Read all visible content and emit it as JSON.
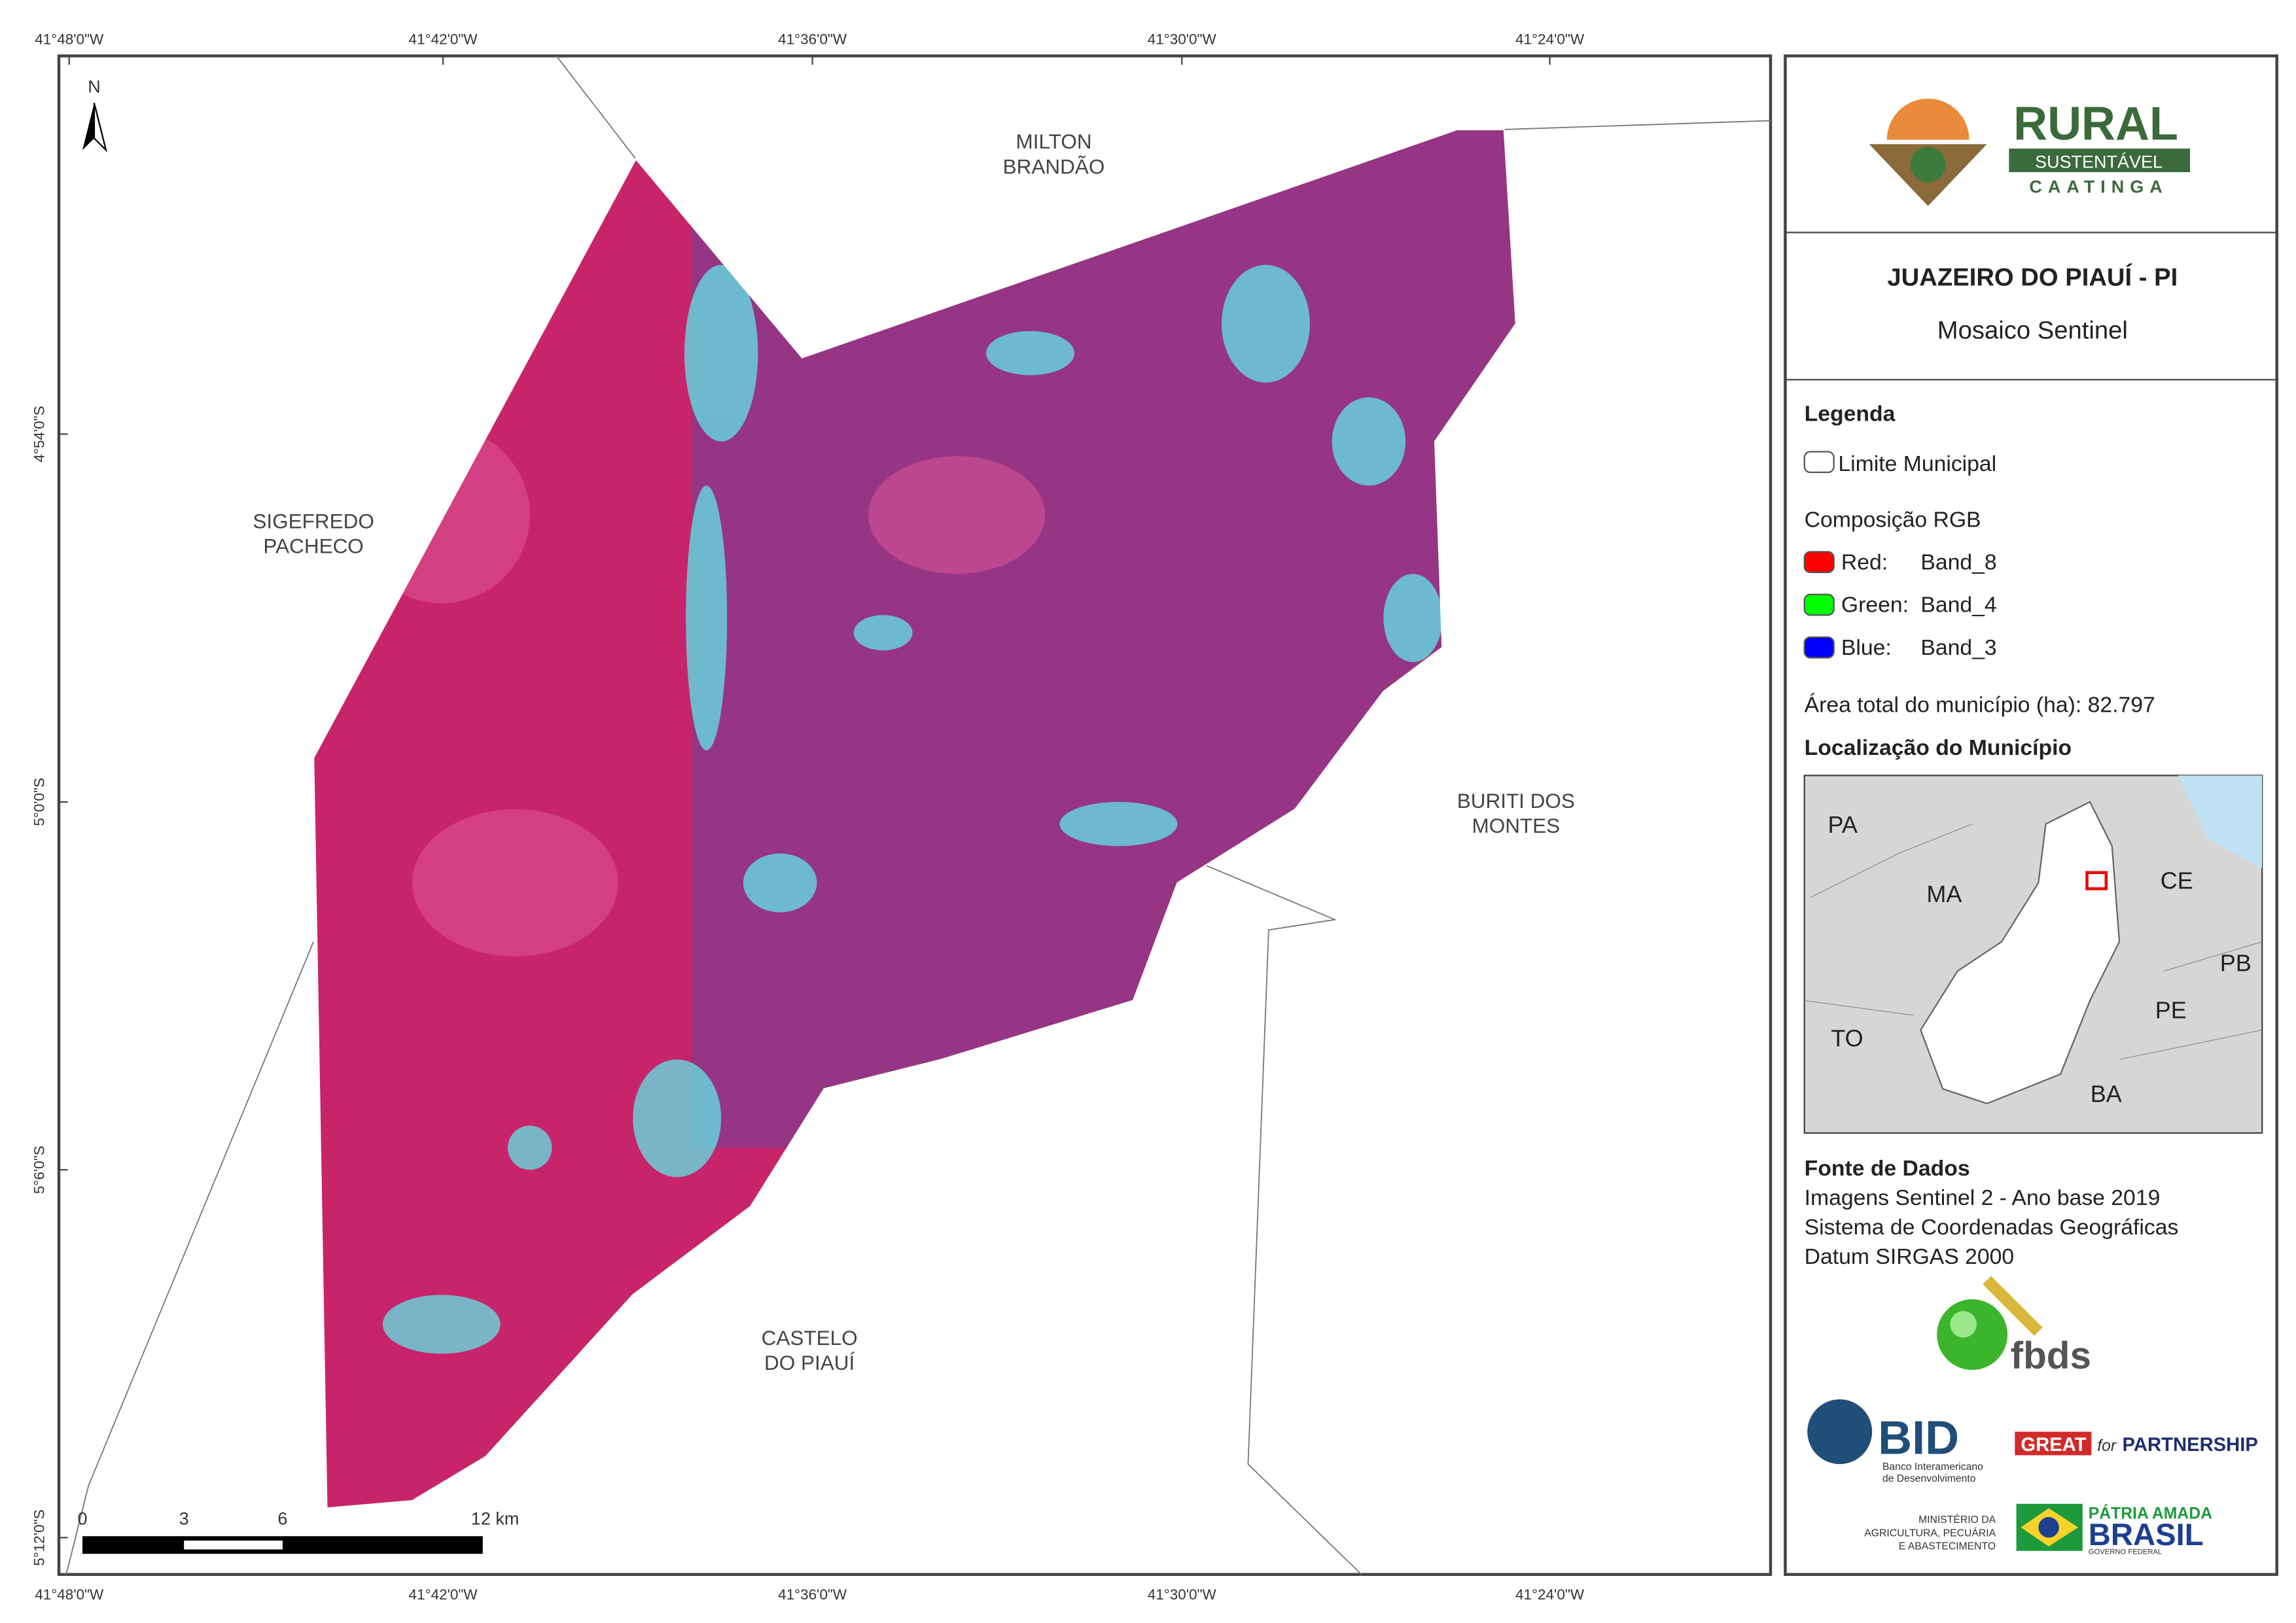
{
  "map": {
    "lon_labels": [
      "41°48'0\"W",
      "41°42'0\"W",
      "41°36'0\"W",
      "41°30'0\"W",
      "41°24'0\"W"
    ],
    "lat_labels": [
      "4°54'0\"S",
      "5°0'0\"S",
      "5°6'0\"S",
      "5°12'0\"S"
    ],
    "north": "N",
    "places": [
      [
        "MILTON",
        "BRANDÃO"
      ],
      [
        "SIGEFREDO",
        "PACHECO"
      ],
      [
        "BURITI DOS",
        "MONTES"
      ],
      [
        "CASTELO",
        "DO PIAUÍ"
      ]
    ],
    "scale_bar": [
      "0",
      "3",
      "6",
      "12 km"
    ]
  },
  "panel": {
    "logo": [
      "RURAL",
      "SUSTENTÁVEL",
      "CAATINGA"
    ],
    "title": "JUAZEIRO DO PIAUÍ - PI",
    "subtitle": "Mosaico Sentinel",
    "legend_title": "Legenda",
    "boundary": "Limite Municipal",
    "rgb_title": "Composição RGB",
    "bands": [
      {
        "label": "Red:",
        "band": "Band_8",
        "color": "#ff0000"
      },
      {
        "label": "Green:",
        "band": "Band_4",
        "color": "#00ff00"
      },
      {
        "label": "Blue:",
        "band": "Band_3",
        "color": "#0000ff"
      }
    ],
    "area": "Área total do município (ha): 82.797",
    "location_title": "Localização do Município",
    "states": [
      "PA",
      "MA",
      "CE",
      "PB",
      "PE",
      "TO",
      "BA"
    ],
    "source_title": "Fonte de Dados",
    "source_lines": [
      "Imagens Sentinel 2 - Ano base 2019",
      "Sistema de Coordenadas Geográficas",
      "Datum SIRGAS 2000"
    ],
    "fbds": "fbds",
    "bid": "BID",
    "bid_sub": [
      "Banco Interamericano",
      "de Desenvolvimento"
    ],
    "great": [
      "GREAT",
      "for",
      "PARTNERSHIP"
    ],
    "ministry": [
      "MINISTÉRIO DA",
      "AGRICULTURA, PECUÁRIA",
      "E ABASTECIMENTO"
    ],
    "brasil": [
      "PÁTRIA AMADA",
      "BRASIL",
      "GOVERNO FEDERAL"
    ]
  }
}
